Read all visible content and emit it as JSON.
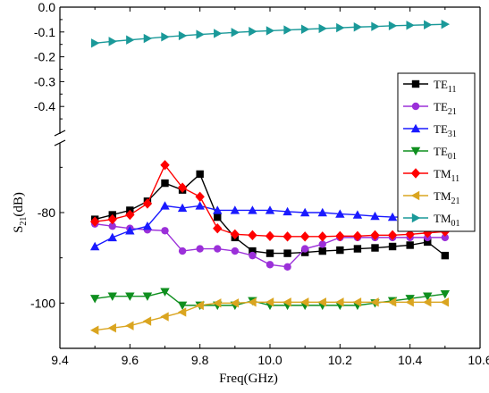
{
  "chart_data": {
    "type": "line",
    "broken_axis": true,
    "xlabel": "Freq(GHz)",
    "ylabel": "S21(dB)",
    "ylabel_main": "S",
    "ylabel_sub": "21",
    "ylabel_tail": "(dB)",
    "xlim": [
      9.4,
      10.6
    ],
    "x_ticks": [
      "9.4",
      "9.6",
      "9.8",
      "10.0",
      "10.2",
      "10.4",
      "10.6"
    ],
    "upper_ylim": [
      -0.5,
      0.0
    ],
    "upper_y_ticks": [
      "0.0",
      "-0.1",
      "-0.2",
      "-0.3",
      "-0.4"
    ],
    "lower_ylim": [
      -110,
      -65
    ],
    "lower_y_ticks": [
      "-80",
      "-100"
    ],
    "legend_position": "right",
    "x": [
      9.5,
      9.55,
      9.6,
      9.65,
      9.7,
      9.75,
      9.8,
      9.85,
      9.9,
      9.95,
      10.0,
      10.05,
      10.1,
      10.15,
      10.2,
      10.25,
      10.3,
      10.35,
      10.4,
      10.45,
      10.5
    ],
    "series": [
      {
        "name": "TE11",
        "label_main": "TE",
        "label_sub": "11",
        "color": "#000000",
        "marker": "square",
        "values": [
          -81.5,
          -80.5,
          -79.5,
          -77.5,
          -73.5,
          -75.0,
          -71.5,
          -81.0,
          -85.5,
          -88.5,
          -89.0,
          -89.0,
          -88.8,
          -88.5,
          -88.3,
          -88.0,
          -87.8,
          -87.5,
          -87.2,
          -86.5,
          -89.5
        ]
      },
      {
        "name": "TE21",
        "label_main": "TE",
        "label_sub": "21",
        "color": "#9b30d9",
        "marker": "circle",
        "values": [
          -82.5,
          -83.0,
          -83.5,
          -83.8,
          -84.0,
          -88.5,
          -88.0,
          -88.0,
          -88.5,
          -89.5,
          -91.5,
          -92.0,
          -88.0,
          -87.0,
          -85.5,
          -85.5,
          -85.5,
          -85.5,
          -85.5,
          -85.5,
          -85.5
        ]
      },
      {
        "name": "TE31",
        "label_main": "TE",
        "label_sub": "31",
        "color": "#1a1aff",
        "marker": "triangle-up",
        "values": [
          -87.5,
          -85.5,
          -84.0,
          -83.0,
          -78.5,
          -79.0,
          -78.5,
          -79.5,
          -79.5,
          -79.5,
          -79.5,
          -79.8,
          -80.0,
          -80.0,
          -80.3,
          -80.5,
          -80.8,
          -81.0,
          -81.0,
          -81.3,
          -81.5
        ]
      },
      {
        "name": "TE01",
        "label_main": "TE",
        "label_sub": "01",
        "color": "#0f8f1f",
        "marker": "triangle-down",
        "values": [
          -99.0,
          -98.5,
          -98.5,
          -98.5,
          -97.5,
          -100.5,
          -100.5,
          -100.5,
          -100.5,
          -99.5,
          -100.5,
          -100.5,
          -100.5,
          -100.5,
          -100.5,
          -100.5,
          -100.0,
          -99.5,
          -99.0,
          -98.5,
          -98.0
        ]
      },
      {
        "name": "TM11",
        "label_main": "TM",
        "label_sub": "11",
        "color": "#ff0000",
        "marker": "diamond",
        "values": [
          -82.0,
          -81.5,
          -80.5,
          -78.0,
          -69.5,
          -74.5,
          -76.5,
          -83.5,
          -84.8,
          -85.0,
          -85.2,
          -85.3,
          -85.3,
          -85.3,
          -85.2,
          -85.2,
          -85.0,
          -85.0,
          -84.8,
          -84.5,
          -84.2
        ]
      },
      {
        "name": "TM21",
        "label_main": "TM",
        "label_sub": "21",
        "color": "#daa520",
        "marker": "triangle-left",
        "values": [
          -106.0,
          -105.5,
          -105.0,
          -104.0,
          -103.0,
          -102.0,
          -100.5,
          -100.0,
          -100.0,
          -99.8,
          -99.8,
          -99.8,
          -99.8,
          -99.8,
          -99.8,
          -99.8,
          -99.8,
          -99.8,
          -99.8,
          -99.8,
          -99.8
        ]
      },
      {
        "name": "TM01",
        "label_main": "TM",
        "label_sub": "01",
        "color": "#1a9999",
        "marker": "triangle-right",
        "panel": "upper",
        "values": [
          -0.145,
          -0.138,
          -0.132,
          -0.126,
          -0.12,
          -0.115,
          -0.11,
          -0.106,
          -0.102,
          -0.098,
          -0.095,
          -0.092,
          -0.089,
          -0.086,
          -0.083,
          -0.08,
          -0.078,
          -0.075,
          -0.073,
          -0.071,
          -0.069
        ]
      }
    ]
  }
}
